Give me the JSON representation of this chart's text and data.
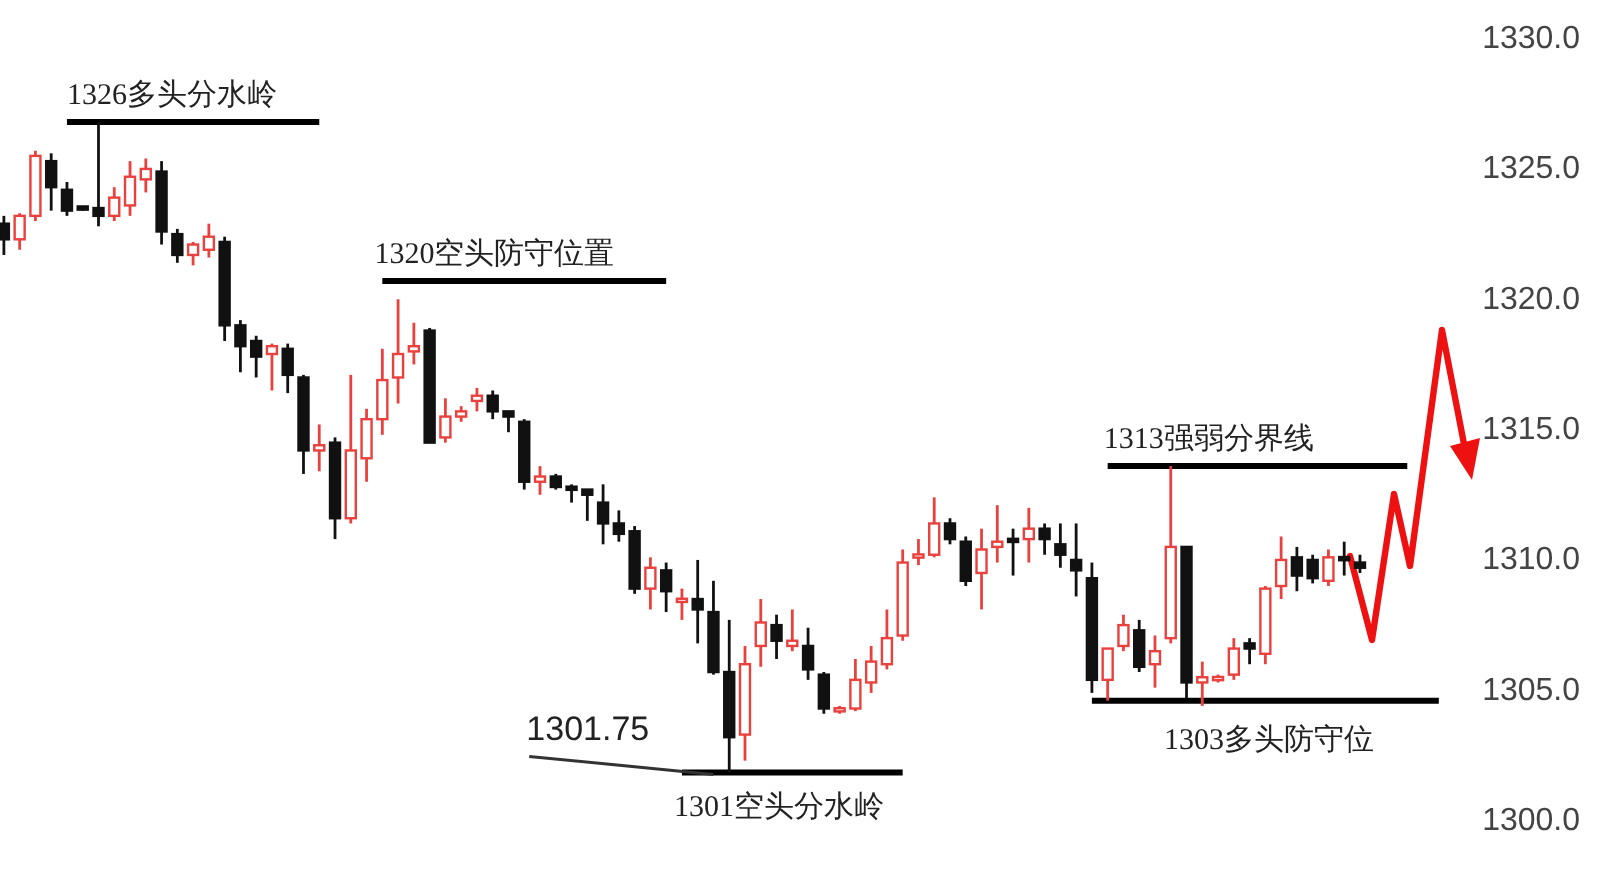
{
  "chart_data": {
    "type": "candlestick",
    "categories": [
      null,
      null,
      null,
      null,
      null,
      null,
      null,
      null,
      null,
      null,
      null,
      null,
      null,
      null,
      null,
      null,
      null,
      null,
      null,
      null,
      null,
      null,
      null,
      null,
      null,
      null,
      null,
      null,
      null,
      null,
      null,
      null,
      null,
      null,
      null,
      null,
      null,
      null,
      null,
      null,
      null,
      null,
      null,
      null,
      null,
      null,
      null,
      null,
      null,
      null,
      null,
      null,
      null,
      null,
      null,
      null,
      null,
      null,
      null,
      null,
      null,
      null,
      null,
      null,
      null,
      null,
      null,
      null,
      null,
      null,
      null,
      null,
      null,
      null,
      null,
      null,
      null,
      null,
      null,
      null,
      null,
      null,
      null,
      null,
      null,
      null,
      null,
      null,
      null,
      null,
      null,
      null,
      null,
      null,
      null
    ],
    "ohlc": [
      [
        1322.8,
        1323.1,
        1321.6,
        1322.2
      ],
      [
        1322.2,
        1323.2,
        1321.8,
        1323.1
      ],
      [
        1323.1,
        1325.6,
        1322.9,
        1325.4
      ],
      [
        1325.2,
        1325.5,
        1323.3,
        1324.2
      ],
      [
        1324.1,
        1324.4,
        1323.1,
        1323.3
      ],
      [
        1323.4,
        1323.4,
        1323.3,
        1323.4
      ],
      [
        1323.4,
        1326.7,
        1322.7,
        1323.1
      ],
      [
        1323.1,
        1324.2,
        1322.9,
        1323.8
      ],
      [
        1323.5,
        1325.2,
        1323.1,
        1324.6
      ],
      [
        1324.5,
        1325.3,
        1324.0,
        1324.9
      ],
      [
        1324.8,
        1325.2,
        1322.0,
        1322.5
      ],
      [
        1322.4,
        1322.6,
        1321.3,
        1321.6
      ],
      [
        1321.6,
        1322.1,
        1321.2,
        1322.0
      ],
      [
        1321.8,
        1322.8,
        1321.5,
        1322.3
      ],
      [
        1322.1,
        1322.3,
        1318.3,
        1318.9
      ],
      [
        1318.9,
        1319.1,
        1317.1,
        1318.1
      ],
      [
        1318.3,
        1318.5,
        1316.9,
        1317.7
      ],
      [
        1317.8,
        1318.2,
        1316.4,
        1318.1
      ],
      [
        1318.0,
        1318.2,
        1316.3,
        1317.0
      ],
      [
        1316.9,
        1317.0,
        1313.2,
        1314.1
      ],
      [
        1314.1,
        1315.1,
        1313.3,
        1314.3
      ],
      [
        1314.4,
        1314.6,
        1310.7,
        1311.5
      ],
      [
        1311.5,
        1317.0,
        1311.3,
        1314.1
      ],
      [
        1313.8,
        1315.7,
        1312.9,
        1315.3
      ],
      [
        1315.3,
        1318.0,
        1314.7,
        1316.8
      ],
      [
        1316.9,
        1319.9,
        1315.9,
        1317.8
      ],
      [
        1317.9,
        1319.0,
        1317.4,
        1318.1
      ],
      [
        1318.7,
        1318.8,
        1314.4,
        1314.4
      ],
      [
        1314.6,
        1316.1,
        1314.4,
        1315.4
      ],
      [
        1315.4,
        1315.8,
        1315.2,
        1315.6
      ],
      [
        1316.0,
        1316.5,
        1315.6,
        1316.2
      ],
      [
        1316.2,
        1316.4,
        1315.3,
        1315.6
      ],
      [
        1315.6,
        1315.6,
        1314.8,
        1315.4
      ],
      [
        1315.2,
        1315.3,
        1312.6,
        1312.9
      ],
      [
        1312.9,
        1313.5,
        1312.4,
        1313.1
      ],
      [
        1313.1,
        1313.2,
        1312.6,
        1312.7
      ],
      [
        1312.7,
        1312.8,
        1312.1,
        1312.6
      ],
      [
        1312.6,
        1312.6,
        1311.4,
        1312.4
      ],
      [
        1312.1,
        1312.8,
        1310.5,
        1311.3
      ],
      [
        1311.3,
        1311.8,
        1310.6,
        1310.9
      ],
      [
        1311.0,
        1311.2,
        1308.6,
        1308.8
      ],
      [
        1308.8,
        1310.0,
        1308.0,
        1309.6
      ],
      [
        1309.5,
        1309.8,
        1307.9,
        1308.7
      ],
      [
        1308.3,
        1308.8,
        1307.6,
        1308.4
      ],
      [
        1308.4,
        1309.9,
        1306.7,
        1308.0
      ],
      [
        1307.9,
        1309.1,
        1305.5,
        1305.6
      ],
      [
        1305.6,
        1307.6,
        1301.75,
        1303.1
      ],
      [
        1303.2,
        1306.6,
        1302.2,
        1305.9
      ],
      [
        1306.6,
        1308.4,
        1305.8,
        1307.5
      ],
      [
        1307.4,
        1307.8,
        1306.1,
        1306.8
      ],
      [
        1306.6,
        1308.0,
        1306.4,
        1306.8
      ],
      [
        1306.6,
        1307.3,
        1305.3,
        1305.7
      ],
      [
        1305.5,
        1305.6,
        1304.0,
        1304.2
      ],
      [
        1304.1,
        1304.3,
        1304.0,
        1304.2
      ],
      [
        1304.2,
        1306.1,
        1304.1,
        1305.3
      ],
      [
        1305.2,
        1306.6,
        1304.8,
        1306.0
      ],
      [
        1305.9,
        1308.0,
        1305.7,
        1306.9
      ],
      [
        1307.0,
        1310.3,
        1306.8,
        1309.8
      ],
      [
        1310.0,
        1310.7,
        1309.7,
        1310.1
      ],
      [
        1310.1,
        1312.3,
        1310.0,
        1311.3
      ],
      [
        1311.3,
        1311.5,
        1310.5,
        1310.7
      ],
      [
        1310.6,
        1310.8,
        1308.9,
        1309.1
      ],
      [
        1309.4,
        1311.1,
        1308.0,
        1310.3
      ],
      [
        1310.4,
        1312.0,
        1309.8,
        1310.6
      ],
      [
        1310.7,
        1311.1,
        1309.3,
        1310.6
      ],
      [
        1310.7,
        1311.9,
        1309.8,
        1311.1
      ],
      [
        1311.1,
        1311.3,
        1310.1,
        1310.7
      ],
      [
        1310.5,
        1311.3,
        1309.6,
        1310.1
      ],
      [
        1309.9,
        1311.3,
        1308.5,
        1309.5
      ],
      [
        1309.2,
        1309.8,
        1304.8,
        1305.3
      ],
      [
        1305.3,
        1306.5,
        1304.5,
        1306.5
      ],
      [
        1306.6,
        1307.8,
        1306.4,
        1307.4
      ],
      [
        1307.2,
        1307.6,
        1305.6,
        1305.8
      ],
      [
        1305.9,
        1307.0,
        1305.0,
        1306.4
      ],
      [
        1306.9,
        1313.5,
        1306.7,
        1310.4
      ],
      [
        1310.4,
        1310.4,
        1304.6,
        1305.2
      ],
      [
        1305.2,
        1306.0,
        1304.3,
        1305.4
      ],
      [
        1305.3,
        1305.5,
        1305.2,
        1305.4
      ],
      [
        1305.5,
        1306.9,
        1305.3,
        1306.5
      ],
      [
        1306.7,
        1306.9,
        1305.9,
        1306.5
      ],
      [
        1306.3,
        1308.9,
        1305.9,
        1308.8
      ],
      [
        1308.9,
        1310.8,
        1308.4,
        1309.9
      ],
      [
        1310.0,
        1310.4,
        1308.7,
        1309.3
      ],
      [
        1309.9,
        1310.1,
        1309.0,
        1309.2
      ],
      [
        1309.1,
        1310.3,
        1308.9,
        1310.0
      ],
      [
        1310.0,
        1310.6,
        1309.3,
        1309.9
      ],
      [
        1309.8,
        1310.1,
        1309.4,
        1309.6
      ],
      null,
      null,
      null,
      null,
      null,
      null,
      null,
      null
    ],
    "colors": [
      "#111111",
      "#e8413e",
      "#e8413e",
      "#111111",
      "#111111",
      "#111111",
      "#111111",
      "#e8413e",
      "#e8413e",
      "#e8413e",
      "#111111",
      "#111111",
      "#e8413e",
      "#e8413e",
      "#111111",
      "#111111",
      "#111111",
      "#e8413e",
      "#111111",
      "#111111",
      "#e8413e",
      "#111111",
      "#e8413e",
      "#e8413e",
      "#e8413e",
      "#e8413e",
      "#e8413e",
      "#111111",
      "#e8413e",
      "#e8413e",
      "#e8413e",
      "#111111",
      "#111111",
      "#111111",
      "#e8413e",
      "#111111",
      "#111111",
      "#111111",
      "#111111",
      "#111111",
      "#111111",
      "#e8413e",
      "#111111",
      "#e8413e",
      "#111111",
      "#111111",
      "#111111",
      "#e8413e",
      "#e8413e",
      "#111111",
      "#e8413e",
      "#111111",
      "#111111",
      "#e8413e",
      "#e8413e",
      "#e8413e",
      "#e8413e",
      "#e8413e",
      "#e8413e",
      "#e8413e",
      "#111111",
      "#111111",
      "#e8413e",
      "#e8413e",
      "#111111",
      "#e8413e",
      "#111111",
      "#111111",
      "#111111",
      "#111111",
      "#e8413e",
      "#e8413e",
      "#111111",
      "#e8413e",
      "#e8413e",
      "#111111",
      "#e8413e",
      "#e8413e",
      "#e8413e",
      "#111111",
      "#e8413e",
      "#e8413e",
      "#111111",
      "#111111",
      "#e8413e",
      "#111111",
      "#111111",
      null,
      null,
      null,
      null,
      null,
      null,
      null,
      null
    ],
    "series": [
      {
        "type": "line",
        "color": "#000000",
        "values": [
          null,
          null,
          null,
          null,
          1326.7,
          1326.7,
          1326.7,
          1326.7,
          1326.7,
          1326.7,
          1326.7,
          1326.7,
          1326.7,
          1326.7,
          1326.7,
          1326.7,
          1326.7,
          1326.7,
          1326.7,
          1326.7,
          1326.7,
          null,
          null,
          null,
          null,
          null,
          null,
          null,
          null,
          null,
          null,
          null,
          null,
          null,
          null,
          null,
          null,
          null,
          null,
          null,
          null,
          null,
          null,
          null,
          null,
          null,
          null,
          null,
          null,
          null,
          null,
          null,
          null,
          null,
          null,
          null,
          null,
          null,
          null,
          null,
          null,
          null,
          null,
          null,
          null,
          null,
          null,
          null,
          null,
          null,
          null,
          null,
          null,
          null,
          null,
          null,
          null,
          null,
          null,
          null,
          null,
          null,
          null,
          null,
          null,
          null,
          null,
          null,
          null,
          null,
          null,
          null,
          null,
          null,
          null
        ]
      },
      {
        "type": "line",
        "color": "#000000",
        "values": [
          null,
          null,
          null,
          null,
          null,
          null,
          null,
          null,
          null,
          null,
          null,
          null,
          null,
          null,
          null,
          null,
          null,
          null,
          null,
          null,
          null,
          null,
          null,
          null,
          1320.6,
          1320.6,
          1320.6,
          1320.6,
          1320.6,
          1320.6,
          1320.6,
          1320.6,
          1320.6,
          1320.6,
          1320.6,
          1320.6,
          1320.6,
          1320.6,
          1320.6,
          1320.6,
          1320.6,
          1320.6,
          1320.6,
          null,
          null,
          null,
          null,
          null,
          null,
          null,
          null,
          null,
          null,
          null,
          null,
          null,
          null,
          null,
          null,
          null,
          null,
          null,
          null,
          null,
          null,
          null,
          null,
          null,
          null,
          null,
          null,
          null,
          null,
          null,
          null,
          null,
          null,
          null,
          null,
          null,
          null,
          null,
          null,
          null,
          null,
          null,
          null,
          null,
          null,
          null,
          null,
          null,
          null,
          null,
          null
        ]
      },
      {
        "type": "line",
        "color": "#000000",
        "values": [
          null,
          null,
          null,
          null,
          null,
          null,
          null,
          null,
          null,
          null,
          null,
          null,
          null,
          null,
          null,
          null,
          null,
          null,
          null,
          null,
          null,
          null,
          null,
          null,
          null,
          null,
          null,
          null,
          null,
          null,
          null,
          null,
          null,
          null,
          null,
          null,
          null,
          null,
          null,
          null,
          null,
          null,
          null,
          null,
          null,
          null,
          null,
          null,
          null,
          null,
          null,
          null,
          null,
          null,
          null,
          null,
          null,
          null,
          null,
          null,
          null,
          null,
          null,
          null,
          null,
          null,
          null,
          null,
          null,
          null,
          1313.5,
          1313.5,
          1313.5,
          1313.5,
          1313.5,
          1313.5,
          1313.5,
          1313.5,
          1313.5,
          1313.5,
          1313.5,
          1313.5,
          1313.5,
          1313.5,
          1313.5,
          1313.5,
          1313.5,
          1313.5,
          1313.5,
          1313.5,
          null,
          null,
          null,
          null,
          null
        ]
      },
      {
        "type": "line",
        "color": "#000000",
        "values": [
          null,
          null,
          null,
          null,
          null,
          null,
          null,
          null,
          null,
          null,
          null,
          null,
          null,
          null,
          null,
          null,
          null,
          null,
          null,
          null,
          null,
          null,
          null,
          null,
          null,
          null,
          null,
          null,
          null,
          null,
          null,
          null,
          null,
          null,
          null,
          null,
          null,
          null,
          null,
          null,
          null,
          null,
          null,
          null,
          null,
          null,
          null,
          null,
          null,
          null,
          null,
          null,
          null,
          null,
          null,
          null,
          null,
          null,
          null,
          null,
          null,
          null,
          null,
          null,
          null,
          null,
          null,
          null,
          null,
          1304.5,
          1304.5,
          1304.5,
          1304.5,
          1304.5,
          1304.5,
          1304.5,
          1304.5,
          1304.5,
          1304.5,
          1304.5,
          1304.5,
          1304.5,
          1304.5,
          1304.5,
          1304.5,
          1304.5,
          1304.5,
          1304.5,
          1304.5,
          1304.5,
          1304.5,
          1304.5,
          null,
          null,
          null
        ]
      },
      {
        "type": "line",
        "color": "#000000",
        "values": [
          null,
          null,
          null,
          null,
          null,
          null,
          null,
          null,
          null,
          null,
          null,
          null,
          null,
          null,
          null,
          null,
          null,
          null,
          null,
          null,
          null,
          null,
          null,
          null,
          null,
          null,
          null,
          null,
          null,
          null,
          null,
          null,
          null,
          null,
          null,
          null,
          null,
          null,
          null,
          null,
          null,
          null,
          null,
          1301.75,
          1301.75,
          1301.75,
          1301.75,
          1301.75,
          1301.75,
          1301.75,
          1301.75,
          1301.75,
          1301.75,
          1301.75,
          1301.75,
          1301.75,
          1301.75,
          1301.75,
          null,
          null,
          null,
          null,
          null,
          null,
          null,
          null,
          null,
          null,
          null,
          null,
          null,
          null,
          null,
          null,
          null,
          null,
          null,
          null,
          null,
          null,
          null,
          null,
          null,
          null,
          null,
          null,
          null,
          null,
          null,
          null,
          null,
          null,
          null,
          null,
          null
        ]
      }
    ],
    "annotations": [
      {
        "text": "1326多头分水岭",
        "y": 1326.7
      },
      {
        "text": "1320空头防守位置",
        "y": 1320.6
      },
      {
        "text": "1313强弱分界线",
        "y": 1313.5
      },
      {
        "text": "1303多头防守位",
        "y": 1304.5
      },
      {
        "text": "1301空头分水岭",
        "y": 1301.75
      },
      "1301.75"
    ],
    "ylim": [
      1300,
      1330
    ],
    "yticks": [
      {
        "value": 1300,
        "label": "1300.0"
      },
      {
        "value": 1305,
        "label": "1305.0"
      },
      {
        "value": 1310,
        "label": "1310.0"
      },
      {
        "value": 1315,
        "label": "1315.0"
      },
      {
        "value": 1320,
        "label": "1320.0"
      },
      {
        "value": 1325,
        "label": "1325.0"
      },
      {
        "value": 1330,
        "label": "1330.0"
      }
    ],
    "tick_labels": "y"
  }
}
